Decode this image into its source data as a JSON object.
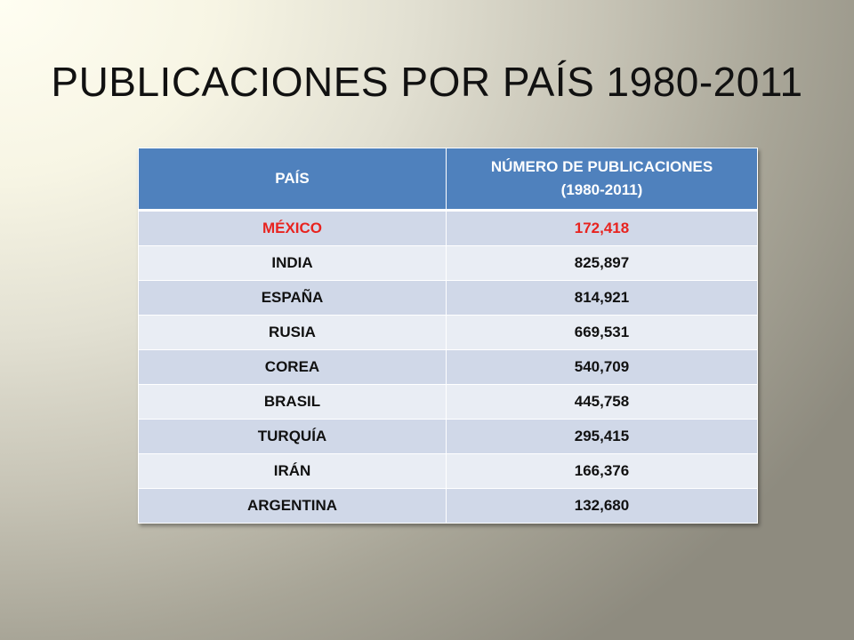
{
  "title": "PUBLICACIONES POR PAÍS 1980-2011",
  "table": {
    "headers": {
      "country": "PAÍS",
      "count_line1": "NÚMERO DE PUBLICACIONES",
      "count_line2": "(1980-2011)"
    },
    "rows": [
      {
        "country": "MÉXICO",
        "count": "172,418",
        "highlight": true
      },
      {
        "country": "INDIA",
        "count": "825,897"
      },
      {
        "country": "ESPAÑA",
        "count": "814,921"
      },
      {
        "country": "RUSIA",
        "count": "669,531"
      },
      {
        "country": "COREA",
        "count": "540,709"
      },
      {
        "country": "BRASIL",
        "count": "445,758"
      },
      {
        "country": "TURQUÍA",
        "count": "295,415"
      },
      {
        "country": "IRÁN",
        "count": "166,376"
      },
      {
        "country": "ARGENTINA",
        "count": "132,680"
      }
    ]
  },
  "colors": {
    "header_bg": "#4f81bd",
    "row_odd_bg": "#d0d8e8",
    "row_even_bg": "#e9edf4",
    "highlight_text": "#e8231f"
  }
}
